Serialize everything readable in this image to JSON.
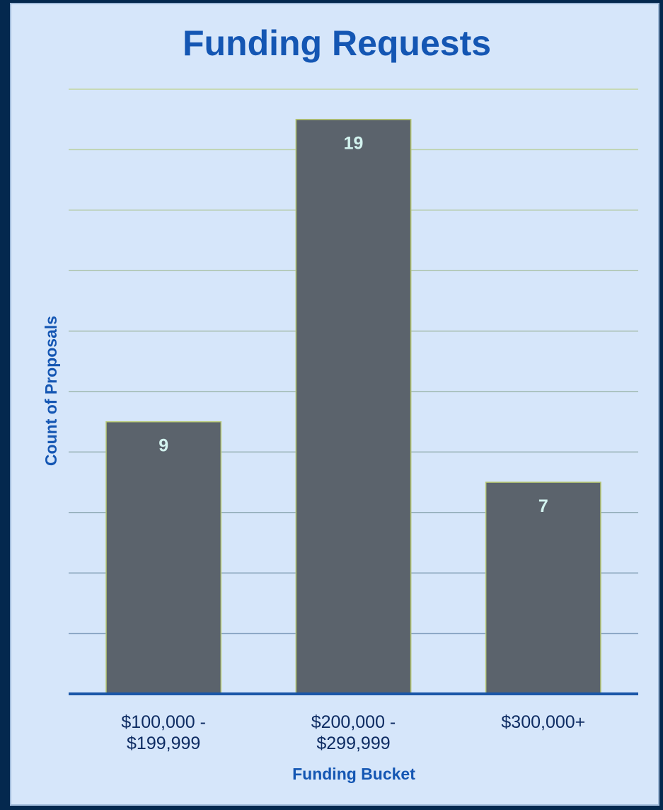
{
  "chart_data": {
    "type": "bar",
    "title": "Funding Requests",
    "xlabel": "Funding Bucket",
    "ylabel": "Count of Proposals",
    "categories": [
      [
        "$100,000 -",
        "$199,999"
      ],
      [
        "$200,000 -",
        "$299,999"
      ],
      [
        "$300,000+"
      ]
    ],
    "values": [
      9,
      19,
      7
    ],
    "data_labels": [
      "9",
      "19",
      "7"
    ],
    "ylim": [
      0,
      20
    ],
    "grid": true,
    "legend": "none",
    "colors": {
      "bar": "#5b636c",
      "bar_border": "#b7c872",
      "data_label": "#d3f3ef",
      "title": "#1456b3",
      "axis": "#1a56a8",
      "background": "#d6e6fa",
      "frame": "#04284e"
    }
  }
}
